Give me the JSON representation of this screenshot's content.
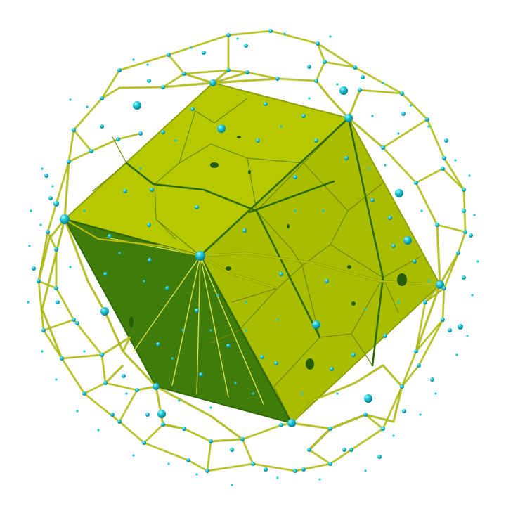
{
  "scene": {
    "background": "#ffffff",
    "colors": {
      "face_light": "#b5c800",
      "face_mid": "#a3b800",
      "face_dark": "#3e7a0a",
      "edge_dark": "#2f6a00",
      "wire": "#b7c400",
      "wire_shadow": "#6b7a00",
      "node": "#1ac6d6",
      "node_highlight": "#9ff5ff",
      "hole": "#245d06"
    },
    "icons": [
      "polyhedron-solid",
      "wireframe-sphere",
      "vertex-node"
    ]
  }
}
